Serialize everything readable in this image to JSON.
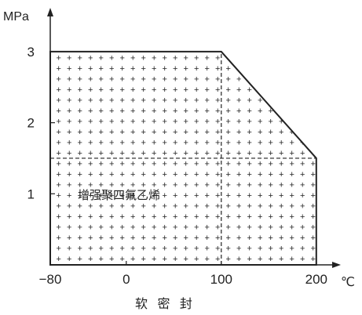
{
  "chart_data": {
    "type": "area",
    "title": "",
    "xlabel": "",
    "ylabel": "MPa",
    "x_unit": "℃",
    "caption": "软 密 封",
    "xlim": [
      -80,
      200
    ],
    "ylim": [
      0,
      3.3
    ],
    "x_ticks": [
      -80,
      0,
      100,
      200
    ],
    "y_ticks": [
      1,
      2,
      3
    ],
    "x_tick_labels": [
      "−80",
      "0",
      "100",
      "200"
    ],
    "y_tick_labels": [
      "1",
      "2",
      "3"
    ],
    "series": [
      {
        "name": "增强聚四氟乙烯",
        "x": [
          -80,
          100,
          200,
          200,
          -80
        ],
        "y": [
          3,
          3,
          1.5,
          0,
          0
        ]
      }
    ],
    "annotations": [
      "增强聚四氟乙烯"
    ],
    "reference_lines": [
      {
        "orientation": "horizontal",
        "value": 1.5,
        "from": -80,
        "to": 200,
        "style": "dashed"
      },
      {
        "orientation": "vertical",
        "value": 100,
        "from": 0,
        "to": 3,
        "style": "dashed"
      }
    ],
    "fill_pattern": "plus-sign",
    "grid": false,
    "legend": "none",
    "colors": {
      "line": "#222222",
      "axis": "#222222",
      "pattern": "#333333"
    }
  }
}
